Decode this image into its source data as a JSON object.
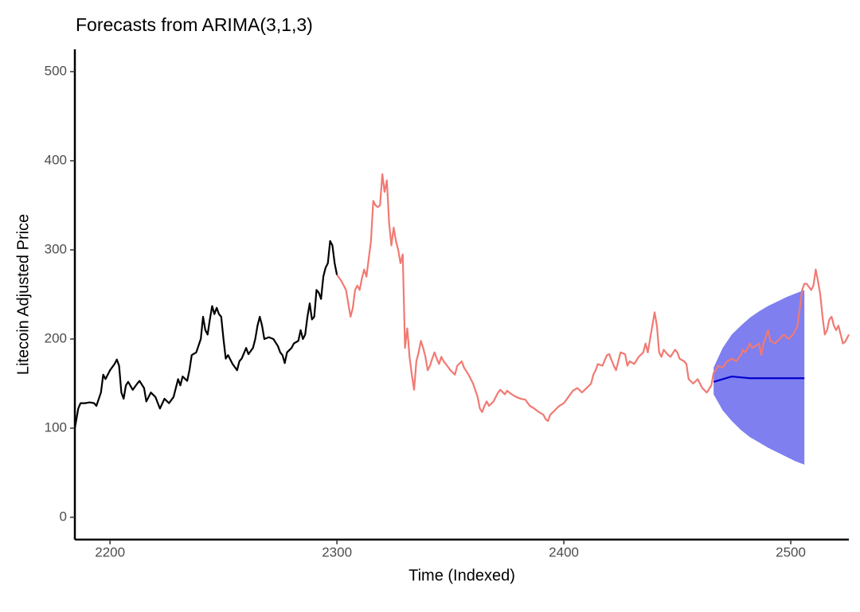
{
  "chart_data": {
    "type": "line",
    "title": "Forecasts from ARIMA(3,1,3)",
    "x_label": "Time (Indexed)",
    "y_label": "Litecoin Adjusted Price",
    "xlim": [
      2184.5,
      2525.6
    ],
    "xticks": [
      2200,
      2300,
      2400,
      2500
    ],
    "ylim": [
      -25,
      525
    ],
    "yticks": [
      0,
      100,
      200,
      300,
      400,
      500
    ],
    "grid": false,
    "series": [
      {
        "color": "#000000",
        "x": [
          2184.5,
          2186,
          2187,
          2189,
          2191,
          2193,
          2194,
          2196,
          2197,
          2198,
          2200,
          2202,
          2203,
          2204,
          2205,
          2206,
          2207,
          2208,
          2210,
          2212,
          2213,
          2215,
          2216,
          2218,
          2220,
          2222,
          2224,
          2226,
          2228,
          2230,
          2231,
          2232,
          2234,
          2235,
          2236,
          2238,
          2240,
          2241,
          2242,
          2243,
          2244,
          2245,
          2246,
          2247,
          2248,
          2249,
          2250,
          2251,
          2252,
          2254,
          2256,
          2257,
          2258,
          2260,
          2261,
          2263,
          2264,
          2265,
          2266,
          2267,
          2268,
          2270,
          2272,
          2274,
          2275,
          2276,
          2277,
          2278,
          2280,
          2281,
          2283,
          2284,
          2285,
          2286,
          2287,
          2288,
          2289,
          2290,
          2291,
          2292,
          2293,
          2294,
          2295,
          2296,
          2297,
          2298,
          2299,
          2300
        ],
        "values": [
          100,
          122,
          128,
          128,
          129,
          128,
          125,
          140,
          160,
          155,
          165,
          172,
          177,
          170,
          140,
          133,
          148,
          152,
          143,
          150,
          153,
          145,
          130,
          140,
          135,
          122,
          133,
          128,
          135,
          155,
          148,
          158,
          153,
          165,
          182,
          185,
          200,
          225,
          210,
          205,
          222,
          237,
          228,
          235,
          228,
          225,
          200,
          178,
          182,
          172,
          165,
          175,
          178,
          190,
          183,
          190,
          200,
          215,
          225,
          215,
          200,
          202,
          200,
          192,
          185,
          182,
          173,
          185,
          190,
          195,
          198,
          210,
          200,
          205,
          225,
          240,
          222,
          225,
          255,
          252,
          245,
          270,
          280,
          285,
          310,
          305,
          285,
          272
        ]
      },
      {
        "color": "#f07a73",
        "x": [
          2300,
          2302,
          2304,
          2305,
          2306,
          2307,
          2308,
          2309,
          2310,
          2311,
          2312,
          2313,
          2314,
          2315,
          2316,
          2317,
          2318,
          2319,
          2320,
          2321,
          2322,
          2323,
          2324,
          2325,
          2326,
          2327,
          2328,
          2329,
          2330,
          2331,
          2332,
          2333,
          2334,
          2335,
          2336,
          2337,
          2338,
          2339,
          2340,
          2341,
          2342,
          2343,
          2344,
          2345,
          2346,
          2347,
          2348,
          2350,
          2352,
          2353,
          2355,
          2356,
          2358,
          2359,
          2360,
          2362,
          2363,
          2364,
          2365,
          2366,
          2367,
          2369,
          2371,
          2372,
          2374,
          2375,
          2377,
          2379,
          2381,
          2383,
          2385,
          2387,
          2389,
          2391,
          2392,
          2393,
          2394,
          2396,
          2398,
          2400,
          2402,
          2404,
          2406,
          2408,
          2410,
          2412,
          2413,
          2414,
          2415,
          2417,
          2419,
          2420,
          2422,
          2423,
          2424,
          2425,
          2427,
          2428,
          2429,
          2431,
          2433,
          2435,
          2436,
          2437,
          2438,
          2439,
          2440,
          2441,
          2442,
          2443,
          2444,
          2446,
          2447,
          2449,
          2450,
          2451,
          2453,
          2454,
          2455,
          2457,
          2459,
          2461,
          2463,
          2465,
          2466,
          2467,
          2468,
          2470,
          2472,
          2474,
          2476,
          2478,
          2479,
          2480,
          2482,
          2483,
          2485,
          2486,
          2487,
          2488,
          2490,
          2491,
          2493,
          2495,
          2497,
          2499,
          2501,
          2503,
          2505,
          2506,
          2507,
          2509,
          2510,
          2511,
          2512,
          2513,
          2514,
          2515,
          2516,
          2517,
          2518,
          2519,
          2520,
          2521,
          2522,
          2523,
          2524,
          2525.6
        ],
        "values": [
          272,
          265,
          255,
          240,
          225,
          235,
          255,
          260,
          255,
          268,
          278,
          270,
          290,
          310,
          355,
          350,
          348,
          350,
          385,
          365,
          378,
          330,
          305,
          325,
          310,
          300,
          285,
          295,
          190,
          212,
          180,
          160,
          143,
          175,
          185,
          198,
          190,
          180,
          165,
          170,
          178,
          185,
          178,
          172,
          180,
          175,
          172,
          165,
          160,
          170,
          175,
          168,
          160,
          155,
          150,
          135,
          122,
          118,
          125,
          130,
          125,
          130,
          140,
          143,
          138,
          142,
          138,
          135,
          133,
          132,
          125,
          122,
          118,
          115,
          110,
          108,
          115,
          120,
          125,
          128,
          135,
          142,
          145,
          140,
          145,
          150,
          160,
          165,
          172,
          170,
          182,
          183,
          170,
          165,
          175,
          185,
          183,
          170,
          175,
          172,
          180,
          185,
          195,
          185,
          200,
          215,
          230,
          215,
          185,
          180,
          188,
          182,
          180,
          188,
          185,
          178,
          175,
          172,
          155,
          150,
          155,
          145,
          140,
          148,
          162,
          165,
          170,
          168,
          175,
          178,
          175,
          182,
          188,
          185,
          195,
          190,
          193,
          195,
          182,
          195,
          210,
          198,
          195,
          200,
          205,
          200,
          205,
          215,
          255,
          262,
          262,
          255,
          260,
          278,
          265,
          250,
          225,
          205,
          210,
          222,
          225,
          215,
          210,
          215,
          205,
          195,
          197,
          205
        ]
      },
      {
        "color": "#0000cc",
        "x": [
          2466,
          2470,
          2474,
          2478,
          2482,
          2486,
          2490,
          2494,
          2498,
          2502,
          2506
        ],
        "values": [
          152,
          155,
          158,
          157,
          156,
          156,
          156,
          156,
          156,
          156,
          156
        ]
      }
    ],
    "interval": {
      "color": "#7f7fef",
      "x": [
        2466,
        2470,
        2474,
        2478,
        2482,
        2486,
        2490,
        2494,
        2498,
        2502,
        2506
      ],
      "lower": [
        138,
        120,
        108,
        98,
        90,
        84,
        78,
        73,
        68,
        63,
        59
      ],
      "upper": [
        168,
        190,
        205,
        215,
        224,
        231,
        237,
        242,
        247,
        251,
        255
      ]
    }
  }
}
